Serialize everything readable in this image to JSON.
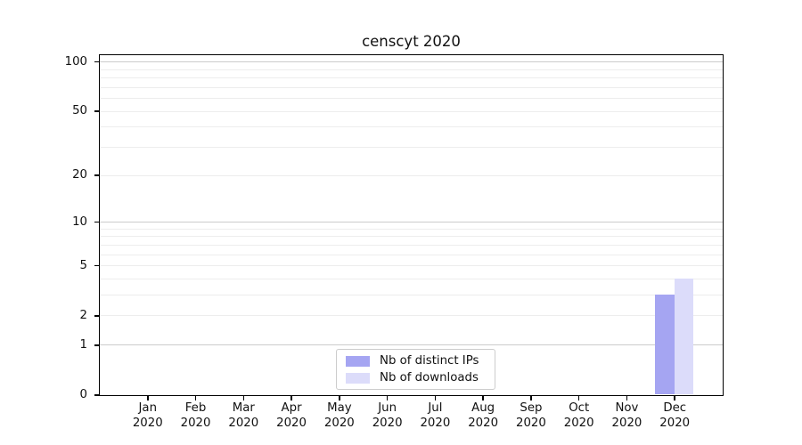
{
  "chart_data": {
    "type": "bar",
    "title": "censcyt 2020",
    "xlabel": "",
    "ylabel": "",
    "categories": [
      "Jan 2020",
      "Feb 2020",
      "Mar 2020",
      "Apr 2020",
      "May 2020",
      "Jun 2020",
      "Jul 2020",
      "Aug 2020",
      "Sep 2020",
      "Oct 2020",
      "Nov 2020",
      "Dec 2020"
    ],
    "series": [
      {
        "name": "Nb of distinct IPs",
        "color": "#a5a5f2",
        "values": [
          0,
          0,
          0,
          0,
          0,
          0,
          0,
          0,
          0,
          0,
          0,
          3
        ]
      },
      {
        "name": "Nb of downloads",
        "color": "#dcdcfa",
        "values": [
          0,
          0,
          0,
          0,
          0,
          0,
          0,
          0,
          0,
          0,
          0,
          4
        ]
      }
    ],
    "yscale": "log1p",
    "ylim": [
      0,
      110
    ],
    "yticks": [
      0,
      1,
      2,
      5,
      10,
      20,
      50,
      100
    ],
    "grid": {
      "major_values": [
        1,
        10,
        100
      ],
      "minor_values": [
        2,
        3,
        4,
        5,
        6,
        7,
        8,
        9,
        20,
        30,
        40,
        50,
        60,
        70,
        80,
        90
      ],
      "major_color": "#cccccc",
      "minor_color": "#ededed"
    },
    "legend": {
      "position": "bottom-center",
      "entries": [
        "Nb of distinct IPs",
        "Nb of downloads"
      ]
    },
    "bar_width_fraction": 0.4,
    "axis_color": "#000000",
    "background_color": "#ffffff"
  }
}
